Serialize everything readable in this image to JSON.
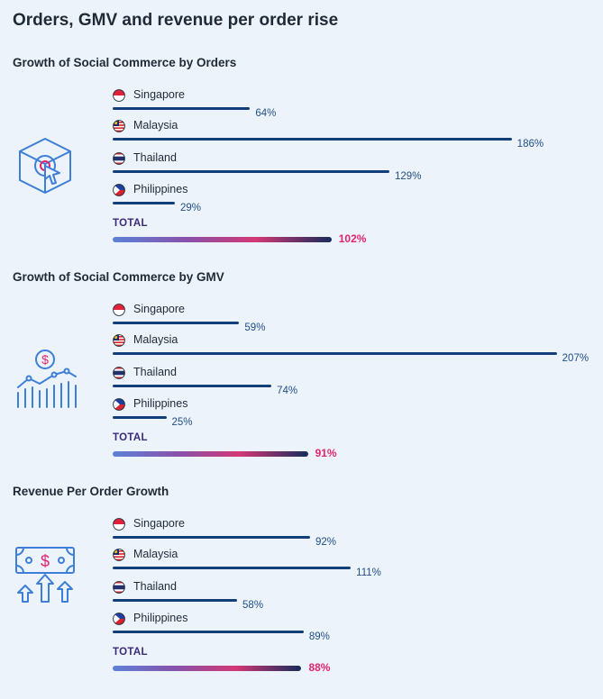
{
  "header": {
    "title": "Orders, GMV and revenue per order rise"
  },
  "total_label": "TOTAL",
  "colors": {
    "bar": "#123f78",
    "value_text": "#1f4e86",
    "total_value": "#e0256b",
    "icon": "#3d7fd6"
  },
  "chart_data": [
    {
      "type": "bar",
      "title": "Growth of Social Commerce by Orders",
      "icon": "shopping-box-cursor-icon",
      "categories": [
        "Singapore",
        "Malaysia",
        "Thailand",
        "Philippines"
      ],
      "values": [
        64,
        186,
        129,
        29
      ],
      "labels": [
        "64%",
        "186%",
        "129%",
        "29%"
      ],
      "total": {
        "value": 102,
        "label": "102%"
      }
    },
    {
      "type": "bar",
      "title": "Growth of Social Commerce by GMV",
      "icon": "dollar-growth-chart-icon",
      "categories": [
        "Singapore",
        "Malaysia",
        "Thailand",
        "Philippines"
      ],
      "values": [
        59,
        207,
        74,
        25
      ],
      "labels": [
        "59%",
        "207%",
        "74%",
        "25%"
      ],
      "total": {
        "value": 91,
        "label": "91%"
      }
    },
    {
      "type": "bar",
      "title": "Revenue Per Order Growth",
      "icon": "banknote-arrows-up-icon",
      "categories": [
        "Singapore",
        "Malaysia",
        "Thailand",
        "Philippines"
      ],
      "values": [
        92,
        111,
        58,
        89
      ],
      "labels": [
        "92%",
        "111%",
        "58%",
        "89%"
      ],
      "total": {
        "value": 88,
        "label": "88%"
      }
    }
  ]
}
